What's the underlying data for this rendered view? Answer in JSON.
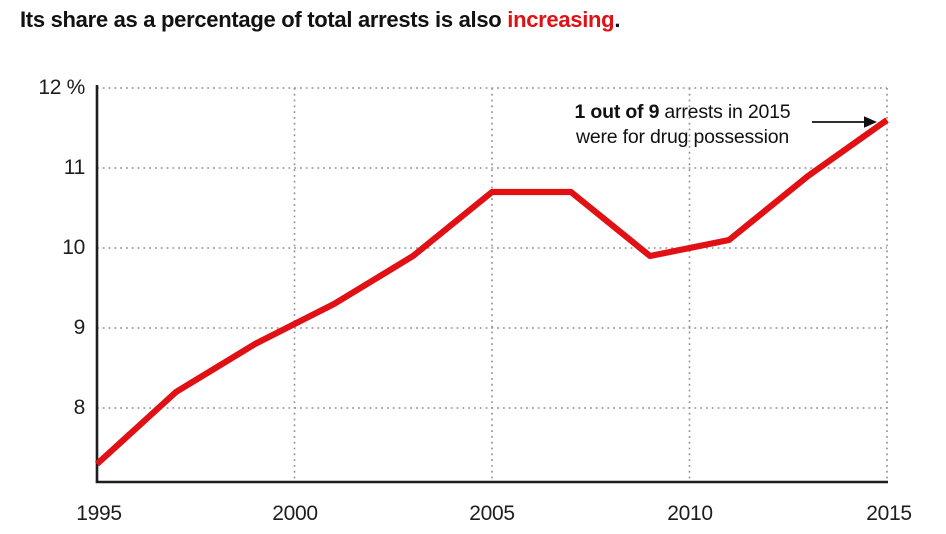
{
  "title": {
    "prefix": "Its share as a percentage of total arrests is also ",
    "highlight": "increasing",
    "suffix": "."
  },
  "annotation": {
    "line1_bold": "1 out of 9",
    "line1_rest": " arrests in 2015",
    "line2": "were for drug possession"
  },
  "chart_data": {
    "type": "line",
    "title": "Its share as a percentage of total arrests is also increasing.",
    "x": [
      1995,
      1997,
      1999,
      2001,
      2003,
      2005,
      2007,
      2009,
      2011,
      2013,
      2015
    ],
    "values": [
      7.3,
      8.2,
      8.8,
      9.3,
      9.9,
      10.7,
      10.7,
      9.9,
      10.1,
      10.9,
      11.6
    ],
    "annotation_text": "1 out of 9 arrests in 2015 were for drug possession",
    "annotation_points_to": {
      "x": 2015,
      "value": 11.6
    },
    "x_ticks": [
      {
        "value": 1995,
        "label": "1995"
      },
      {
        "value": 2000,
        "label": "2000"
      },
      {
        "value": 2005,
        "label": "2005"
      },
      {
        "value": 2010,
        "label": "2010"
      },
      {
        "value": 2015,
        "label": "2015"
      }
    ],
    "y_ticks": [
      {
        "value": 12,
        "label": "12 %"
      },
      {
        "value": 11,
        "label": "11"
      },
      {
        "value": 10,
        "label": "10"
      },
      {
        "value": 9,
        "label": "9"
      },
      {
        "value": 8,
        "label": "8"
      }
    ],
    "xlim": [
      1995,
      2015
    ],
    "ylim": [
      7.05,
      12
    ],
    "grid": "dotted",
    "legend": "none",
    "line_color": "#e01014",
    "axis_color": "#1d1d1d",
    "grid_color": "#909090"
  },
  "colors": {
    "accent_red": "#e01014",
    "text": "#111111",
    "background": "#ffffff"
  }
}
